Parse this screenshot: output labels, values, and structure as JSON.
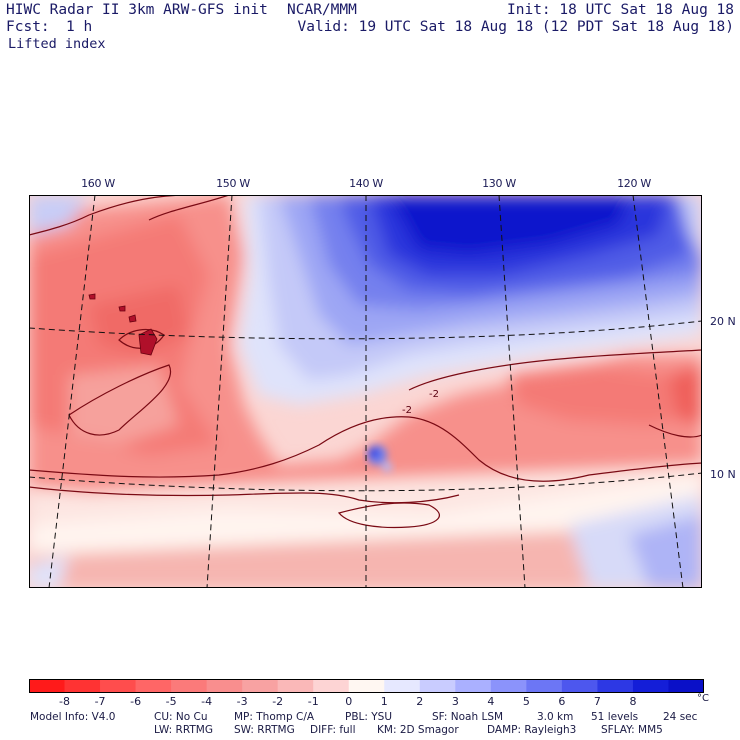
{
  "header": {
    "title": "HIWC Radar II 3km ARW-GFS init",
    "agency": "NCAR/MMM",
    "init": "Init: 18 UTC Sat 18 Aug 18",
    "fcst_label": "Fcst:",
    "fcst_value": "1 h",
    "valid": "Valid: 19 UTC Sat 18 Aug 18 (12 PDT Sat 18 Aug 18)",
    "field": "Lifted index"
  },
  "map": {
    "lon_labels": [
      "160 W",
      "150 W",
      "140 W",
      "130 W",
      "120 W"
    ],
    "lat_labels": [
      "20 N",
      "10 N"
    ],
    "contour_labels": [
      "-2",
      "-2"
    ]
  },
  "colorbar": {
    "ticks": [
      "-8",
      "-7",
      "-6",
      "-5",
      "-4",
      "-3",
      "-2",
      "-1",
      "0",
      "1",
      "2",
      "3",
      "4",
      "5",
      "6",
      "7",
      "8"
    ],
    "unit": "°C",
    "colors": [
      "#ff1a1a",
      "#ff3333",
      "#ff4d4d",
      "#ff6666",
      "#fb7a7a",
      "#f98e8e",
      "#f8a2a2",
      "#fab8b8",
      "#fdd4d4",
      "#fff7f2",
      "#e6e8ff",
      "#c9ccff",
      "#aab0ff",
      "#8b93fb",
      "#6c76f5",
      "#4d57ee",
      "#2d38e4",
      "#141ed8",
      "#0a10c8"
    ]
  },
  "model_info": {
    "line1": {
      "model": "Model Info: V4.0",
      "cu": "CU: No Cu",
      "mp": "MP: Thomp C/A",
      "pbl": "PBL: YSU",
      "sf": "SF: Noah LSM",
      "res": "3.0 km",
      "levels": "51 levels",
      "dt": "24 sec"
    },
    "line2": {
      "lw": "LW: RRTMG",
      "sw": "SW: RRTMG",
      "diff": "DIFF: full",
      "km": "KM: 2D Smagor",
      "damp": "DAMP: Rayleigh3",
      "sflay": "SFLAY: MM5"
    }
  }
}
